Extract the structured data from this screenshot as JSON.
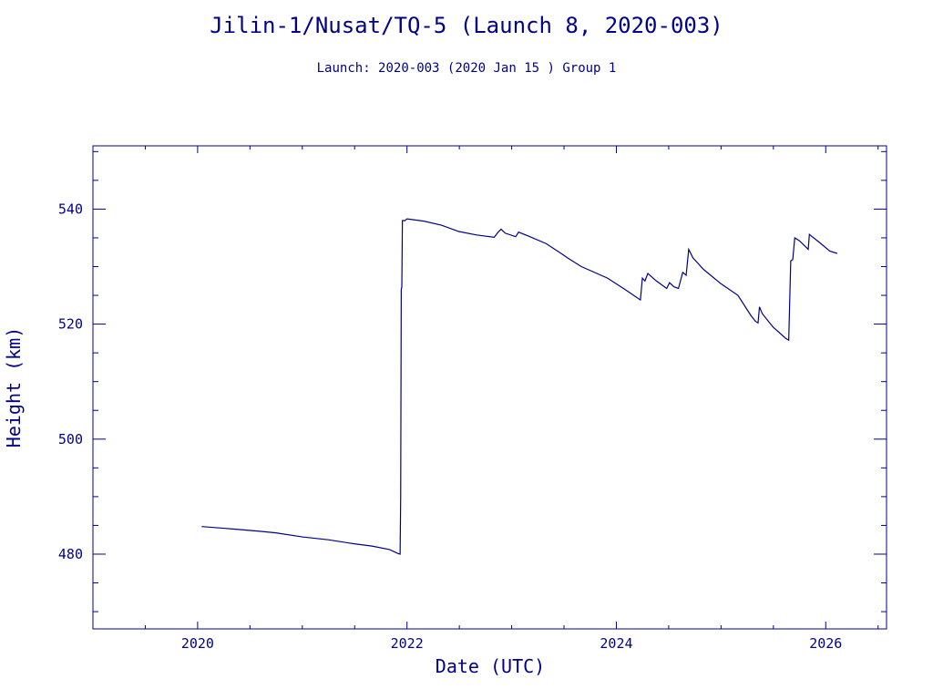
{
  "title": "Jilin-1/Nusat/TQ-5 (Launch 8, 2020-003)",
  "subtitle": "Launch: 2020-003  (2020 Jan 15 )  Group 1",
  "chart_data": {
    "type": "line",
    "xlabel": "Date (UTC)",
    "ylabel": "Height (km)",
    "xlim": [
      "2019-01-01",
      "2026-08-01"
    ],
    "ylim": [
      467,
      551
    ],
    "x_ticks": [
      "2020",
      "2022",
      "2024",
      "2026"
    ],
    "y_ticks": [
      "480",
      "500",
      "520",
      "540"
    ],
    "grid": false,
    "line_color": "#00008b",
    "series": [
      {
        "points": [
          [
            "2020-01-15",
            484.8
          ],
          [
            "2020-04-01",
            484.5
          ],
          [
            "2020-08-01",
            484.0
          ],
          [
            "2020-10-01",
            483.7
          ],
          [
            "2021-01-01",
            483.0
          ],
          [
            "2021-04-01",
            482.5
          ],
          [
            "2021-07-01",
            481.8
          ],
          [
            "2021-09-01",
            481.4
          ],
          [
            "2021-11-01",
            480.8
          ],
          [
            "2021-12-01",
            480.1
          ],
          [
            "2021-12-08",
            480.0
          ],
          [
            "2021-12-10",
            490.0
          ],
          [
            "2021-12-12",
            526.0
          ],
          [
            "2021-12-14",
            526.5
          ],
          [
            "2021-12-16",
            538.0
          ],
          [
            "2021-12-25",
            538.0
          ],
          [
            "2022-01-01",
            538.3
          ],
          [
            "2022-03-01",
            537.9
          ],
          [
            "2022-05-01",
            537.2
          ],
          [
            "2022-07-01",
            536.1
          ],
          [
            "2022-09-01",
            535.5
          ],
          [
            "2022-11-01",
            535.1
          ],
          [
            "2022-11-15",
            536.0
          ],
          [
            "2022-11-25",
            536.5
          ],
          [
            "2022-12-10",
            535.8
          ],
          [
            "2023-01-15",
            535.2
          ],
          [
            "2023-01-25",
            536.0
          ],
          [
            "2023-03-01",
            535.3
          ],
          [
            "2023-05-01",
            534.0
          ],
          [
            "2023-07-01",
            532.0
          ],
          [
            "2023-07-15",
            531.5
          ],
          [
            "2023-09-01",
            530.0
          ],
          [
            "2023-12-01",
            528.0
          ],
          [
            "2024-02-01",
            526.0
          ],
          [
            "2024-03-25",
            524.2
          ],
          [
            "2024-04-01",
            528.0
          ],
          [
            "2024-04-10",
            527.5
          ],
          [
            "2024-04-20",
            528.8
          ],
          [
            "2024-05-20",
            527.5
          ],
          [
            "2024-06-25",
            526.2
          ],
          [
            "2024-07-05",
            527.2
          ],
          [
            "2024-07-20",
            526.5
          ],
          [
            "2024-08-05",
            526.2
          ],
          [
            "2024-08-20",
            529.0
          ],
          [
            "2024-09-01",
            528.5
          ],
          [
            "2024-09-10",
            533.0
          ],
          [
            "2024-09-25",
            531.5
          ],
          [
            "2024-11-01",
            529.5
          ],
          [
            "2025-01-01",
            527.0
          ],
          [
            "2025-03-01",
            525.0
          ],
          [
            "2025-04-15",
            521.5
          ],
          [
            "2025-05-01",
            520.5
          ],
          [
            "2025-05-10",
            520.2
          ],
          [
            "2025-05-15",
            523.0
          ],
          [
            "2025-05-25",
            521.8
          ],
          [
            "2025-07-01",
            519.5
          ],
          [
            "2025-08-15",
            517.5
          ],
          [
            "2025-08-25",
            517.2
          ],
          [
            "2025-09-01",
            531.0
          ],
          [
            "2025-09-08",
            531.2
          ],
          [
            "2025-09-15",
            535.0
          ],
          [
            "2025-10-01",
            534.5
          ],
          [
            "2025-11-01",
            533.0
          ],
          [
            "2025-11-05",
            535.6
          ],
          [
            "2025-12-15",
            534.0
          ],
          [
            "2026-01-15",
            532.7
          ],
          [
            "2026-02-10",
            532.3
          ]
        ]
      }
    ]
  }
}
